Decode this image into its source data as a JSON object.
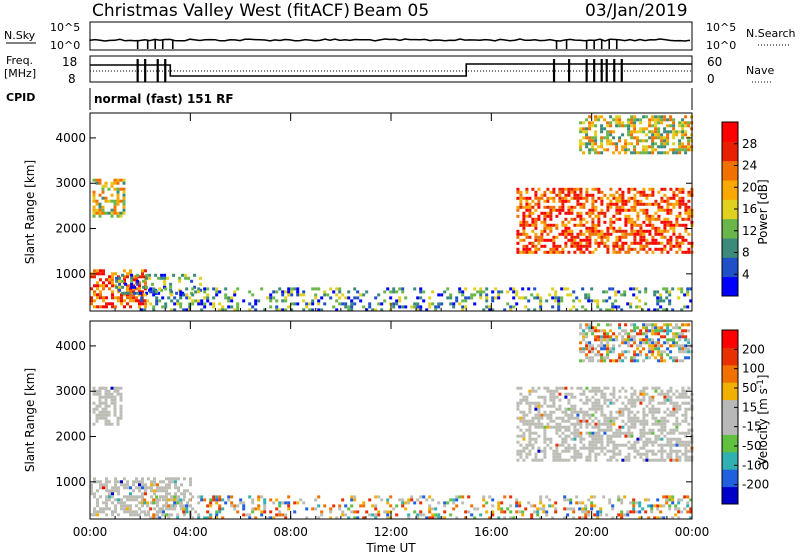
{
  "header": {
    "station": "Christmas Valley West (fitACF)",
    "beam": "Beam 05",
    "date": "03/Jan/2019"
  },
  "strip_labels": {
    "nsky": "N.Sky",
    "nsky_ticks": [
      "10^5",
      "10^0"
    ],
    "nsearch": "N.Search",
    "nsearch_ticks": [
      "10^5",
      "10^0"
    ],
    "freq": "Freq.",
    "freq_unit": "[MHz]",
    "freq_ticks": [
      "18",
      "8"
    ],
    "nave": "Nave",
    "nave_ticks": [
      "60",
      "0"
    ],
    "cpid": "CPID",
    "cpid_value": "normal (fast) 151 RF"
  },
  "colors": {
    "power_scale": [
      "#0000ff",
      "#2050c8",
      "#3c8a7a",
      "#6ab64a",
      "#e0d020",
      "#f8a800",
      "#f07000",
      "#e82000",
      "#ff0000"
    ],
    "velocity_scale": [
      "#0000c8",
      "#2060e0",
      "#30b0b0",
      "#60c040",
      "#b8b8b8",
      "#b8b8b8",
      "#f0b000",
      "#f07000",
      "#e83000",
      "#ff0000"
    ],
    "ground_grey": "#bdbdb6"
  },
  "chart_data": [
    {
      "type": "heatmap",
      "panel": "power",
      "ylabel": "Slant Range [km]",
      "xlabel": "",
      "x_ticks": [
        "00:00",
        "04:00",
        "08:00",
        "12:00",
        "16:00",
        "20:00",
        "00:00"
      ],
      "y_ticks": [
        1000,
        2000,
        3000,
        4000
      ],
      "ylim": [
        180,
        4550
      ],
      "colorbar": {
        "label": "Power [dB]",
        "ticks": [
          4,
          8,
          12,
          16,
          20,
          24,
          28
        ]
      },
      "echo_regions": [
        {
          "t0": 0.0,
          "t1": 2.2,
          "r0": 300,
          "r1": 1100,
          "level": "high"
        },
        {
          "t0": 0.1,
          "t1": 1.4,
          "r0": 2300,
          "r1": 3100,
          "level": "medium"
        },
        {
          "t0": 1.0,
          "t1": 4.5,
          "r0": 600,
          "r1": 1000,
          "level": "low"
        },
        {
          "t0": 2.0,
          "t1": 24.0,
          "r0": 200,
          "r1": 700,
          "level": "low"
        },
        {
          "t0": 17.0,
          "t1": 24.0,
          "r0": 1500,
          "r1": 2900,
          "level": "high"
        },
        {
          "t0": 19.5,
          "t1": 24.0,
          "r0": 3700,
          "r1": 4500,
          "level": "medium"
        }
      ]
    },
    {
      "type": "heatmap",
      "panel": "velocity",
      "ylabel": "Slant Range [km]",
      "xlabel": "Time UT",
      "x_ticks": [
        "00:00",
        "04:00",
        "08:00",
        "12:00",
        "16:00",
        "20:00",
        "00:00"
      ],
      "y_ticks": [
        1000,
        2000,
        3000,
        4000
      ],
      "ylim": [
        180,
        4550
      ],
      "colorbar": {
        "label": "Velocity [m s^-1]",
        "ticks": [
          200,
          100,
          50,
          15,
          -15,
          -50,
          -100,
          -200
        ]
      },
      "echo_regions": [
        {
          "t0": 0.0,
          "t1": 4.0,
          "r0": 300,
          "r1": 1100,
          "velocity_class": "ground"
        },
        {
          "t0": 0.1,
          "t1": 1.2,
          "r0": 2300,
          "r1": 3100,
          "velocity_class": "ground"
        },
        {
          "t0": 2.0,
          "t1": 24.0,
          "r0": 200,
          "r1": 700,
          "velocity_class": "mixed"
        },
        {
          "t0": 17.0,
          "t1": 24.0,
          "r0": 1500,
          "r1": 3100,
          "velocity_class": "ground"
        },
        {
          "t0": 19.5,
          "t1": 24.0,
          "r0": 3700,
          "r1": 4500,
          "velocity_class": "mixed"
        }
      ]
    }
  ]
}
